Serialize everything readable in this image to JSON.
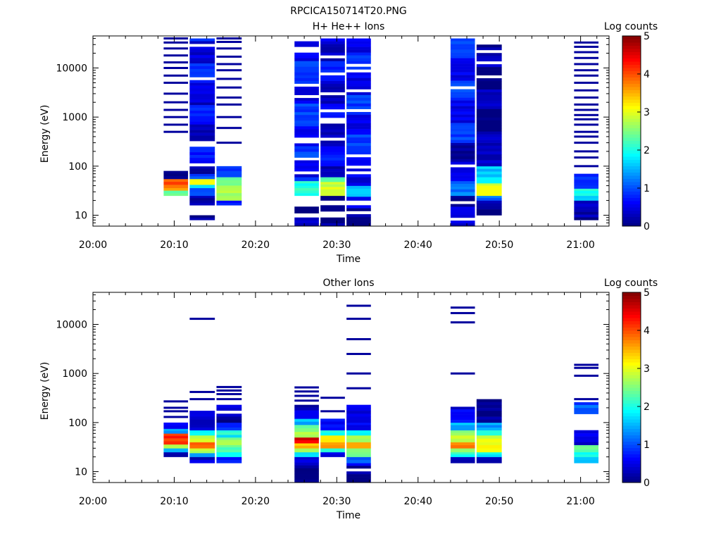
{
  "figure_title": "RPCICA150714T20.PNG",
  "chart_data": [
    {
      "type": "heatmap",
      "title": "H+ He++ Ions",
      "xlabel": "Time",
      "ylabel": "Energy (eV)",
      "colorbar_label": "Log counts",
      "colorbar_ticks": [
        "0",
        "1",
        "2",
        "3",
        "4",
        "5"
      ],
      "x_ticks": [
        "20:00",
        "20:10",
        "20:20",
        "20:30",
        "20:40",
        "20:50",
        "21:00"
      ],
      "y_ticks": [
        "10",
        "100",
        "1000",
        "10000"
      ],
      "xlim_minutes": [
        0,
        63.5
      ],
      "y_scale": "log",
      "ylim_eV": [
        6,
        45000
      ],
      "clim": [
        0,
        5
      ],
      "columns": [
        {
          "t0": 8.7,
          "t1": 11.7,
          "emin": 25,
          "emax": 40000,
          "bands": [
            [
              25,
              28,
              2.4
            ],
            [
              28,
              32,
              2.8
            ],
            [
              32,
              36,
              3.6
            ],
            [
              36,
              42,
              4.2
            ],
            [
              42,
              55,
              4.0
            ],
            [
              55,
              80,
              0.4
            ]
          ],
          "lines": [
            500,
            700,
            1000,
            1400,
            2000,
            3000,
            5000,
            7000,
            10000,
            13000,
            18000,
            25000,
            33000,
            40000
          ]
        },
        {
          "t0": 11.9,
          "t1": 15.0,
          "emin": 8,
          "emax": 40000,
          "bands": [
            [
              8,
              10,
              0.3
            ],
            [
              16,
              20,
              0.3
            ],
            [
              20,
              25,
              0.6
            ],
            [
              25,
              30,
              0.9
            ],
            [
              30,
              36,
              1.4
            ],
            [
              36,
              42,
              1.9
            ],
            [
              42,
              55,
              3.5
            ],
            [
              55,
              70,
              1.0
            ],
            [
              70,
              100,
              0.5
            ],
            [
              100,
              2000,
              0.7
            ],
            [
              2000,
              40000,
              0.8
            ]
          ],
          "lines": []
        },
        {
          "t0": 15.2,
          "t1": 18.3,
          "emin": 16,
          "emax": 40000,
          "bands": [
            [
              16,
              20,
              1.0
            ],
            [
              20,
              25,
              2.8
            ],
            [
              25,
              32,
              3.0
            ],
            [
              32,
              45,
              2.9
            ],
            [
              45,
              60,
              2.5
            ],
            [
              60,
              80,
              1.3
            ],
            [
              80,
              100,
              0.8
            ]
          ],
          "lines": [
            300,
            600,
            1000,
            1800,
            2500,
            4000,
            6000,
            9000,
            12000,
            17000,
            25000,
            34000,
            40000
          ]
        },
        {
          "t0": 24.8,
          "t1": 27.8,
          "emin": 6,
          "emax": 40000,
          "bands": [
            [
              6,
              9,
              0.3
            ],
            [
              11,
              15,
              0.2
            ],
            [
              25,
              32,
              2.0
            ],
            [
              32,
              40,
              2.5
            ],
            [
              40,
              50,
              2.0
            ],
            [
              50,
              60,
              1.3
            ],
            [
              60,
              150,
              0.5
            ],
            [
              150,
              40000,
              0.9
            ]
          ],
          "lines": []
        },
        {
          "t0": 28.0,
          "t1": 31.0,
          "emin": 6,
          "emax": 40000,
          "bands": [
            [
              6,
              9,
              0.3
            ],
            [
              12,
              16,
              0.2
            ],
            [
              20,
              25,
              0.4
            ],
            [
              25,
              30,
              3.0
            ],
            [
              30,
              38,
              3.4
            ],
            [
              38,
              48,
              2.9
            ],
            [
              48,
              60,
              2.6
            ],
            [
              60,
              100,
              0.3
            ],
            [
              100,
              40000,
              0.7
            ]
          ],
          "lines": []
        },
        {
          "t0": 31.2,
          "t1": 34.2,
          "emin": 6,
          "emax": 40000,
          "bands": [
            [
              6,
              16,
              0.5
            ],
            [
              20,
              24,
              1.0
            ],
            [
              24,
              30,
              1.5
            ],
            [
              30,
              40,
              2.0
            ],
            [
              40,
              60,
              0.4
            ],
            [
              60,
              40000,
              0.9
            ]
          ],
          "lines": []
        },
        {
          "t0": 44.0,
          "t1": 47.0,
          "emin": 6,
          "emax": 40000,
          "bands": [
            [
              6,
              25,
              0.4
            ],
            [
              25,
              30,
              1.2
            ],
            [
              30,
              38,
              1.5
            ],
            [
              38,
              50,
              1.2
            ],
            [
              50,
              300,
              0.5
            ],
            [
              300,
              40000,
              0.9
            ]
          ],
          "lines": []
        },
        {
          "t0": 47.2,
          "t1": 50.3,
          "emin": 10,
          "emax": 30000,
          "bands": [
            [
              10,
              20,
              0.2
            ],
            [
              20,
              25,
              1.5
            ],
            [
              25,
              30,
              3.0
            ],
            [
              30,
              36,
              3.5
            ],
            [
              36,
              45,
              3.0
            ],
            [
              45,
              60,
              2.3
            ],
            [
              60,
              100,
              1.6
            ],
            [
              100,
              300,
              0.7
            ],
            [
              300,
              30000,
              0.3
            ]
          ],
          "lines": []
        },
        {
          "t0": 59.2,
          "t1": 62.2,
          "emin": 8,
          "emax": 33000,
          "bands": [
            [
              8,
              15,
              0.2
            ],
            [
              15,
              20,
              0.6
            ],
            [
              20,
              25,
              1.5
            ],
            [
              25,
              35,
              2.3
            ],
            [
              35,
              70,
              0.8
            ]
          ],
          "lines": [
            100,
            150,
            200,
            300,
            400,
            500,
            700,
            900,
            1100,
            1400,
            1800,
            2500,
            3500,
            5000,
            7000,
            9000,
            12000,
            16000,
            21000,
            27000,
            33000
          ]
        }
      ]
    },
    {
      "type": "heatmap",
      "title": "Other Ions",
      "xlabel": "Time",
      "ylabel": "Energy (eV)",
      "colorbar_label": "Log counts",
      "colorbar_ticks": [
        "0",
        "1",
        "2",
        "3",
        "4",
        "5"
      ],
      "x_ticks": [
        "20:00",
        "20:10",
        "20:20",
        "20:30",
        "20:40",
        "20:50",
        "21:00"
      ],
      "y_ticks": [
        "10",
        "100",
        "1000",
        "10000"
      ],
      "xlim_minutes": [
        0,
        63.5
      ],
      "y_scale": "log",
      "ylim_eV": [
        6,
        45000
      ],
      "clim": [
        0,
        5
      ],
      "columns": [
        {
          "t0": 8.7,
          "t1": 11.7,
          "emin": 20,
          "emax": 100,
          "bands": [
            [
              20,
              25,
              0.2
            ],
            [
              25,
              30,
              2.0
            ],
            [
              30,
              36,
              2.8
            ],
            [
              36,
              48,
              4.4
            ],
            [
              48,
              60,
              4.2
            ],
            [
              60,
              75,
              1.8
            ],
            [
              75,
              100,
              0.6
            ]
          ],
          "lines": [
            130,
            170,
            200,
            270
          ]
        },
        {
          "t0": 11.9,
          "t1": 15.0,
          "emin": 15,
          "emax": 200,
          "bands": [
            [
              15,
              20,
              0.6
            ],
            [
              20,
              24,
              1.5
            ],
            [
              24,
              30,
              3.2
            ],
            [
              30,
              40,
              3.8
            ],
            [
              40,
              55,
              3.2
            ],
            [
              55,
              70,
              2.0
            ],
            [
              70,
              100,
              0.7
            ],
            [
              100,
              200,
              0.4
            ]
          ],
          "lines": [
            300,
            420,
            13000
          ]
        },
        {
          "t0": 15.2,
          "t1": 18.3,
          "emin": 15,
          "emax": 230,
          "bands": [
            [
              15,
              20,
              1.0
            ],
            [
              20,
              25,
              2.0
            ],
            [
              25,
              35,
              2.6
            ],
            [
              35,
              50,
              2.9
            ],
            [
              50,
              70,
              2.2
            ],
            [
              70,
              100,
              1.1
            ],
            [
              100,
              230,
              0.4
            ]
          ],
          "lines": [
            300,
            380,
            450,
            530
          ]
        },
        {
          "t0": 24.8,
          "t1": 27.8,
          "emin": 6,
          "emax": 230,
          "bands": [
            [
              6,
              20,
              0.4
            ],
            [
              20,
              25,
              2.2
            ],
            [
              25,
              30,
              2.6
            ],
            [
              30,
              38,
              3.8
            ],
            [
              38,
              50,
              4.5
            ],
            [
              50,
              65,
              3.2
            ],
            [
              65,
              90,
              2.5
            ],
            [
              90,
              120,
              1.8
            ],
            [
              120,
              230,
              0.6
            ]
          ],
          "lines": [
            280,
            350,
            430,
            520
          ]
        },
        {
          "t0": 28.0,
          "t1": 31.0,
          "emin": 20,
          "emax": 120,
          "bands": [
            [
              20,
              25,
              0.9
            ],
            [
              25,
              30,
              2.2
            ],
            [
              30,
              40,
              4.0
            ],
            [
              40,
              55,
              3.3
            ],
            [
              55,
              70,
              2.4
            ],
            [
              70,
              120,
              0.7
            ]
          ],
          "lines": [
            170,
            320
          ]
        },
        {
          "t0": 31.2,
          "t1": 34.2,
          "emin": 6,
          "emax": 230,
          "bands": [
            [
              6,
              15,
              0.5
            ],
            [
              15,
              20,
              1.5
            ],
            [
              20,
              25,
              2.3
            ],
            [
              25,
              30,
              3.0
            ],
            [
              30,
              40,
              3.6
            ],
            [
              40,
              55,
              3.0
            ],
            [
              55,
              70,
              2.0
            ],
            [
              70,
              100,
              1.0
            ],
            [
              100,
              230,
              0.5
            ]
          ],
          "lines": [
            500,
            1000,
            2500,
            5000,
            13000,
            24000
          ]
        },
        {
          "t0": 44.0,
          "t1": 47.0,
          "emin": 15,
          "emax": 210,
          "bands": [
            [
              15,
              20,
              0.6
            ],
            [
              20,
              25,
              2.0
            ],
            [
              25,
              30,
              2.8
            ],
            [
              30,
              40,
              3.8
            ],
            [
              40,
              55,
              3.2
            ],
            [
              55,
              70,
              2.5
            ],
            [
              70,
              100,
              1.6
            ],
            [
              100,
              210,
              0.7
            ]
          ],
          "lines": [
            1000,
            11000,
            17000,
            22000
          ]
        },
        {
          "t0": 47.2,
          "t1": 50.3,
          "emin": 15,
          "emax": 300,
          "bands": [
            [
              15,
              20,
              0.2
            ],
            [
              20,
              25,
              2.2
            ],
            [
              25,
              30,
              3.0
            ],
            [
              30,
              40,
              3.4
            ],
            [
              40,
              55,
              3.0
            ],
            [
              55,
              70,
              2.5
            ],
            [
              70,
              100,
              1.4
            ],
            [
              100,
              300,
              0.5
            ]
          ],
          "lines": []
        },
        {
          "t0": 59.2,
          "t1": 62.2,
          "emin": 15,
          "emax": 1500,
          "bands": [
            [
              15,
              20,
              1.5
            ],
            [
              20,
              25,
              2.2
            ],
            [
              25,
              35,
              2.3
            ],
            [
              35,
              45,
              0.7
            ],
            [
              45,
              70,
              0.5
            ],
            [
              150,
              200,
              1.4
            ],
            [
              200,
              260,
              1.3
            ]
          ],
          "lines": [
            300,
            900,
            1300,
            1500
          ]
        }
      ]
    }
  ]
}
